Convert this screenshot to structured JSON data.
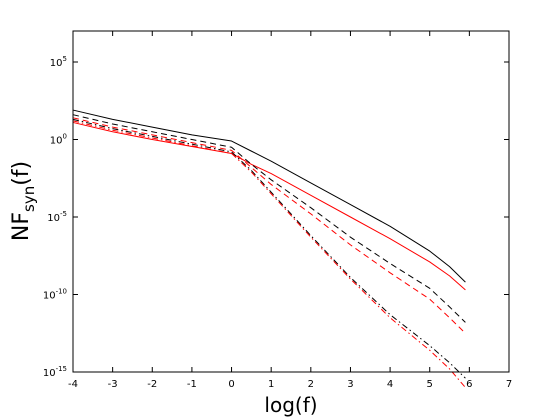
{
  "chart_data": {
    "type": "line",
    "title": "",
    "xlabel": "log(f)",
    "ylabel": {
      "base": "NF",
      "subscript": "syn",
      "suffix": "(f)"
    },
    "xlim": [
      -4,
      7
    ],
    "ylim_log10": [
      -15,
      7
    ],
    "y_scale": "log",
    "grid": false,
    "x_ticks": [
      "-4",
      "-3",
      "-2",
      "-1",
      "0",
      "1",
      "2",
      "3",
      "4",
      "5",
      "6",
      "7"
    ],
    "y_ticks": [
      {
        "value": 5,
        "base": "10",
        "exp": "5"
      },
      {
        "value": 0,
        "base": "10",
        "exp": "0"
      },
      {
        "value": -5,
        "base": "10",
        "exp": "-5"
      },
      {
        "value": -10,
        "base": "10",
        "exp": "-10"
      },
      {
        "value": -15,
        "base": "10",
        "exp": "-15"
      }
    ],
    "series": [
      {
        "color": "#000000",
        "dash": "solid",
        "x": [
          -4,
          -3,
          -2,
          -1,
          0,
          0.5,
          1,
          2,
          3,
          4,
          5,
          5.5,
          5.9
        ],
        "log10_y": [
          1.9,
          1.3,
          0.8,
          0.3,
          -0.1,
          -0.75,
          -1.4,
          -2.8,
          -4.2,
          -5.6,
          -7.2,
          -8.2,
          -9.2
        ]
      },
      {
        "color": "#ff0000",
        "dash": "solid",
        "x": [
          -4,
          -3,
          -2,
          -1,
          0,
          0.5,
          1,
          2,
          3,
          4,
          5,
          5.5,
          5.9
        ],
        "log10_y": [
          1.1,
          0.5,
          0.0,
          -0.45,
          -0.9,
          -1.6,
          -2.2,
          -3.6,
          -5.0,
          -6.4,
          -7.9,
          -8.8,
          -9.7
        ]
      },
      {
        "color": "#000000",
        "dash": "dashed",
        "x": [
          -4,
          -3,
          -2,
          -1,
          0,
          0.5,
          1,
          2,
          3,
          4,
          5,
          5.5,
          5.9
        ],
        "log10_y": [
          1.6,
          1.0,
          0.5,
          0.0,
          -0.5,
          -1.6,
          -2.6,
          -4.4,
          -6.3,
          -8.0,
          -9.6,
          -10.8,
          -11.8
        ]
      },
      {
        "color": "#ff0000",
        "dash": "dashed",
        "x": [
          -4,
          -3,
          -2,
          -1,
          0,
          0.5,
          1,
          2,
          3,
          4,
          5,
          5.5,
          5.9
        ],
        "log10_y": [
          1.4,
          0.8,
          0.3,
          -0.2,
          -0.7,
          -1.8,
          -2.9,
          -4.8,
          -6.8,
          -8.6,
          -10.3,
          -11.5,
          -12.5
        ]
      },
      {
        "color": "#000000",
        "dash": "dashdot",
        "x": [
          -4,
          -3,
          -2,
          -1,
          0,
          0.5,
          1,
          2,
          3,
          4,
          5,
          5.5,
          5.9
        ],
        "log10_y": [
          1.3,
          0.7,
          0.2,
          -0.3,
          -0.8,
          -2.0,
          -3.4,
          -6.2,
          -8.9,
          -11.3,
          -13.3,
          -14.4,
          -15.4
        ]
      },
      {
        "color": "#ff0000",
        "dash": "dashdot",
        "x": [
          -4,
          -3,
          -2,
          -1,
          0,
          0.5,
          1,
          2,
          3,
          4,
          5,
          5.5,
          5.9
        ],
        "log10_y": [
          1.2,
          0.6,
          0.1,
          -0.4,
          -0.9,
          -2.1,
          -3.5,
          -6.3,
          -9.0,
          -11.5,
          -13.6,
          -14.8,
          -16.0
        ]
      }
    ]
  }
}
